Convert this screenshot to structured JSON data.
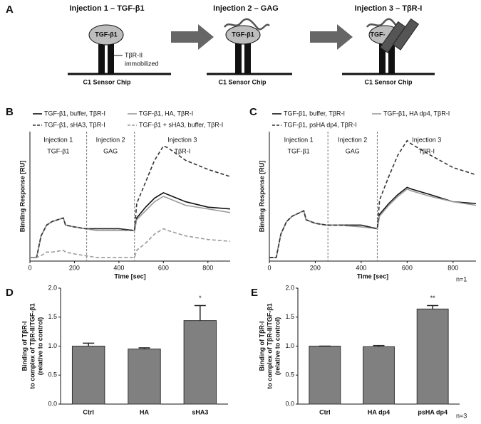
{
  "panel_labels": [
    "A",
    "B",
    "C",
    "D",
    "E"
  ],
  "diagram": {
    "steps": [
      {
        "title": "Injection 1 – TGF-β1",
        "ligand": "TGF-β1",
        "chip": "C1 Sensor Chip"
      },
      {
        "title": "Injection 2 – GAG",
        "ligand": "TGF-β1",
        "chip": "C1 Sensor Chip"
      },
      {
        "title": "Injection 3 – TβR-I",
        "ligand": "TGF-",
        "chip": "C1 Sensor Chip"
      }
    ],
    "receptor_label": [
      "TβR-II",
      "immobilized"
    ]
  },
  "chart_data": [
    {
      "type": "line",
      "ylabel": "Binding Response [RU]",
      "xlabel": "Time [sec]",
      "x": [
        0,
        30,
        50,
        75,
        100,
        150,
        160,
        200,
        250,
        300,
        400,
        470,
        480,
        520,
        560,
        600,
        620,
        700,
        800,
        900
      ],
      "xlim": [
        0,
        900
      ],
      "xticks": [
        0,
        200,
        400,
        600,
        800
      ],
      "ylim": [
        -2,
        70
      ],
      "phase_bounds": [
        255,
        470
      ],
      "phases": [
        {
          "name": "Injection 1",
          "agent": "TGF-β1"
        },
        {
          "name": "Injection 2",
          "agent": "GAG"
        },
        {
          "name": "Injection 3",
          "agent": "TβR-I"
        }
      ],
      "series": [
        {
          "name": "TGF-β1, buffer, TβR-I",
          "color": "#111111",
          "style": "solid",
          "values": [
            0,
            0,
            12,
            18,
            20,
            22,
            18,
            17,
            16,
            16,
            16,
            15,
            22,
            28,
            33,
            36,
            35,
            31,
            28,
            27
          ]
        },
        {
          "name": "TGF-β1, HA, TβR-I",
          "color": "#9a9a9a",
          "style": "solid",
          "values": [
            0,
            0,
            12,
            18,
            20,
            22,
            18,
            17,
            16,
            15,
            15,
            15,
            21,
            26,
            31,
            34,
            33,
            29,
            27,
            25
          ]
        },
        {
          "name": "TGF-β1, sHA3, TβR-I",
          "color": "#333333",
          "style": "dashed",
          "values": [
            0,
            0,
            12,
            18,
            20,
            22,
            18,
            17,
            16,
            16,
            16,
            15,
            30,
            42,
            54,
            62,
            61,
            54,
            49,
            45
          ]
        },
        {
          "name": "TGF-β1 + sHA3, buffer, TβR-I",
          "color": "#9a9a9a",
          "style": "dashed",
          "values": [
            0,
            0,
            1,
            3,
            3,
            4,
            3,
            2,
            1,
            0,
            0,
            0,
            4,
            8,
            13,
            16,
            15,
            12,
            10,
            9
          ]
        }
      ]
    },
    {
      "type": "line",
      "ylabel": "Binding Response [RU]",
      "xlabel": "Time [sec]",
      "x": [
        0,
        30,
        50,
        75,
        100,
        150,
        160,
        200,
        250,
        300,
        400,
        470,
        480,
        520,
        560,
        600,
        620,
        700,
        800,
        900
      ],
      "xlim": [
        0,
        900
      ],
      "xticks": [
        0,
        200,
        400,
        600,
        800
      ],
      "ylim": [
        -2,
        70
      ],
      "phase_bounds": [
        255,
        470
      ],
      "phases": [
        {
          "name": "Injection 1",
          "agent": "TGF-β1"
        },
        {
          "name": "Injection 2",
          "agent": "GAG"
        },
        {
          "name": "Injection 3",
          "agent": "TβR-I"
        }
      ],
      "series": [
        {
          "name": "TGF-β1, buffer, TβR-I",
          "color": "#111111",
          "style": "solid",
          "values": [
            0,
            0,
            13,
            20,
            23,
            26,
            21,
            19,
            18,
            18,
            18,
            16,
            24,
            30,
            35,
            39,
            38,
            35,
            31,
            30
          ]
        },
        {
          "name": "TGF-β1, HA dp4, TβR-I",
          "color": "#9a9a9a",
          "style": "solid",
          "values": [
            0,
            0,
            13,
            20,
            23,
            26,
            21,
            19,
            18,
            18,
            17,
            16,
            23,
            29,
            34,
            38,
            37,
            34,
            31,
            29
          ]
        },
        {
          "name": "TGF-β1, psHA dp4, TβR-I",
          "color": "#333333",
          "style": "dashed",
          "values": [
            0,
            0,
            13,
            20,
            23,
            26,
            21,
            19,
            18,
            18,
            18,
            16,
            32,
            45,
            57,
            65,
            63,
            57,
            50,
            46
          ]
        }
      ]
    },
    {
      "type": "bar",
      "ylabel": [
        "Binding of TβR-I",
        "to complex of TβR-II/TGF-β1",
        "(relative to control)"
      ],
      "categories": [
        "Ctrl",
        "HA",
        "sHA3"
      ],
      "values": [
        1.0,
        0.95,
        1.44
      ],
      "errors": [
        0.05,
        0.02,
        0.26
      ],
      "significance": [
        null,
        null,
        "*"
      ],
      "color": "#808080",
      "ylim": [
        0,
        2
      ],
      "yticks": [
        {
          "value": 0,
          "label": "0.0"
        },
        {
          "value": 0.5,
          "label": "0.5"
        },
        {
          "value": 1,
          "label": "1.0"
        },
        {
          "value": 1.5,
          "label": "1.5"
        },
        {
          "value": 2,
          "label": "2.0"
        }
      ]
    },
    {
      "type": "bar",
      "ylabel": [
        "Binding of TβR-I",
        "to complex of TβR-II/TGF-β1",
        "(relative to control)"
      ],
      "categories": [
        "Ctrl",
        "HA dp4",
        "psHA dp4"
      ],
      "values": [
        1.0,
        0.99,
        1.64
      ],
      "errors": [
        0.0,
        0.02,
        0.06
      ],
      "significance": [
        null,
        null,
        "**"
      ],
      "color": "#808080",
      "ylim": [
        0,
        2
      ],
      "yticks": [
        {
          "value": 0,
          "label": "0.0"
        },
        {
          "value": 0.5,
          "label": "0.5"
        },
        {
          "value": 1,
          "label": "1.0"
        },
        {
          "value": 1.5,
          "label": "1.5"
        },
        {
          "value": 2,
          "label": "2.0"
        }
      ]
    }
  ],
  "notes": [
    "n=1",
    "n=3"
  ]
}
